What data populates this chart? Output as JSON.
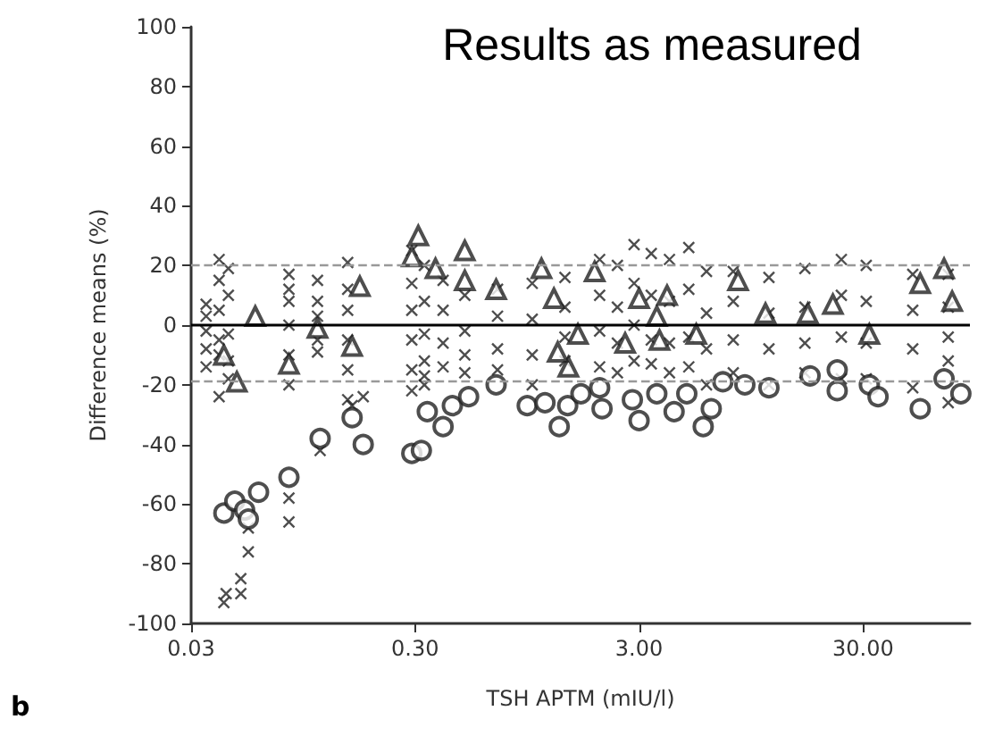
{
  "chart_data": {
    "type": "scatter",
    "title": "Results as measured",
    "xlabel": "TSH APTM (mIU/l)",
    "ylabel": "Difference means (%)",
    "annotations": [
      "b"
    ],
    "log": "x",
    "grid": false,
    "xlim": [
      0.03,
      90
    ],
    "xticks": [
      {
        "value": 0.03,
        "label": "0.03"
      },
      {
        "value": 0.3,
        "label": "0.30"
      },
      {
        "value": 3,
        "label": "3.00"
      },
      {
        "value": 30,
        "label": "30.00"
      }
    ],
    "ylim": [
      -100,
      100
    ],
    "yticks": [
      -100,
      -80,
      -60,
      -40,
      -20,
      0,
      20,
      40,
      60,
      80,
      100
    ],
    "ref_lines": [
      {
        "axis": "y",
        "value": 0,
        "color": "#000000",
        "line_style": "solid"
      },
      {
        "axis": "y",
        "value": 20,
        "color": "#999999",
        "line_style": "dashed"
      },
      {
        "axis": "y",
        "value": -19,
        "color": "#999999",
        "line_style": "dashed"
      }
    ],
    "series": [
      {
        "color": "#222222",
        "marker": "cross",
        "x": [
          0.042,
          0.043,
          0.05,
          0.05,
          0.054,
          0.054,
          0.082,
          0.082,
          0.113,
          0.157,
          0.176,
          0.035,
          0.035,
          0.035,
          0.035,
          0.035,
          0.04,
          0.04,
          0.04,
          0.04,
          0.04,
          0.04,
          0.044,
          0.044,
          0.044,
          0.044,
          0.044,
          0.082,
          0.082,
          0.082,
          0.082,
          0.082,
          0.082,
          0.11,
          0.11,
          0.11,
          0.11,
          0.11,
          0.15,
          0.15,
          0.15,
          0.15,
          0.15,
          0.15,
          0.29,
          0.29,
          0.29,
          0.29,
          0.29,
          0.29,
          0.33,
          0.33,
          0.33,
          0.33,
          0.33,
          0.33,
          0.4,
          0.4,
          0.4,
          0.4,
          0.5,
          0.5,
          0.5,
          0.5,
          0.7,
          0.7,
          0.7,
          0.7,
          1.0,
          1.0,
          1.0,
          1.0,
          1.4,
          1.4,
          1.4,
          1.4,
          2.0,
          2.0,
          2.0,
          2.0,
          2.4,
          2.4,
          2.4,
          2.4,
          2.85,
          2.85,
          2.85,
          2.85,
          3.4,
          3.4,
          3.4,
          3.4,
          4.1,
          4.1,
          4.1,
          4.1,
          5.0,
          5.0,
          5.0,
          5.0,
          6.0,
          6.0,
          6.0,
          6.0,
          7.9,
          7.9,
          7.9,
          7.9,
          11.4,
          11.4,
          11.4,
          11.4,
          16.5,
          16.5,
          16.5,
          16.5,
          24,
          24,
          24,
          24,
          31,
          31,
          31,
          31,
          50,
          50,
          50,
          50,
          72,
          72,
          72,
          72,
          72
        ],
        "values": [
          -93,
          -90,
          -90,
          -85,
          -76,
          -68,
          -66,
          -58,
          -42,
          -27,
          -24,
          7,
          3,
          -2,
          -8,
          -14,
          22,
          15,
          5,
          -5,
          -10,
          -24,
          19,
          10,
          -3,
          -12,
          -18,
          17,
          12,
          8,
          0,
          -10,
          -20,
          15,
          8,
          3,
          -5,
          -9,
          21,
          12,
          5,
          -5,
          -15,
          -25,
          25,
          14,
          5,
          -5,
          -15,
          -22,
          20,
          8,
          -3,
          -12,
          -17,
          -20,
          15,
          5,
          -6,
          -14,
          10,
          -2,
          -10,
          -16,
          12,
          3,
          -8,
          -15,
          14,
          2,
          -10,
          -20,
          16,
          6,
          -4,
          -12,
          22,
          10,
          -2,
          -14,
          20,
          6,
          -6,
          -16,
          27,
          14,
          0,
          -12,
          24,
          10,
          -5,
          -13,
          22,
          8,
          -6,
          -16,
          26,
          12,
          -4,
          -14,
          18,
          4,
          -8,
          -20,
          18,
          8,
          -5,
          -16,
          16,
          4,
          -8,
          -20,
          19,
          6,
          -6,
          -16,
          22,
          10,
          -4,
          -18,
          20,
          8,
          -6,
          -18,
          17,
          5,
          -8,
          -21,
          17,
          6,
          -4,
          -12,
          -26
        ]
      },
      {
        "color": "#222222",
        "marker": "triangle",
        "x": [
          0.042,
          0.048,
          0.058,
          0.082,
          0.11,
          0.157,
          0.17,
          0.29,
          0.31,
          0.37,
          0.5,
          0.5,
          0.69,
          1.1,
          1.25,
          1.6,
          1.9,
          1.45,
          1.3,
          2.6,
          3.0,
          3.7,
          3.6,
          4.0,
          5.4,
          8.3,
          11,
          17,
          22,
          32,
          54,
          69,
          75
        ],
        "values": [
          -10,
          -19,
          3,
          -13,
          -1,
          -7,
          13,
          23,
          30,
          19,
          25,
          15,
          12,
          19,
          9,
          -3,
          18,
          -14,
          -9,
          -6,
          9,
          -5,
          3,
          10,
          -3,
          15,
          4,
          4,
          7,
          -3,
          14,
          19,
          8
        ]
      },
      {
        "color": "#222222",
        "marker": "circle",
        "x": [
          0.042,
          0.047,
          0.052,
          0.06,
          0.054,
          0.082,
          0.113,
          0.157,
          0.176,
          0.29,
          0.32,
          0.34,
          0.4,
          0.44,
          0.52,
          0.69,
          0.95,
          1.14,
          1.32,
          1.44,
          1.65,
          2.0,
          2.05,
          3.0,
          2.8,
          3.6,
          4.3,
          4.9,
          5.8,
          6.3,
          7.1,
          8.9,
          11.4,
          17.4,
          23,
          23,
          32,
          35,
          54,
          69,
          82
        ],
        "values": [
          -63,
          -59,
          -62,
          -56,
          -65,
          -51,
          -38,
          -31,
          -40,
          -43,
          -42,
          -29,
          -34,
          -27,
          -24,
          -20,
          -27,
          -26,
          -34,
          -27,
          -23,
          -21,
          -28,
          -32,
          -25,
          -23,
          -29,
          -23,
          -34,
          -28,
          -19,
          -20,
          -21,
          -17,
          -22,
          -15,
          -20,
          -24,
          -28,
          -18,
          -23
        ]
      }
    ]
  }
}
